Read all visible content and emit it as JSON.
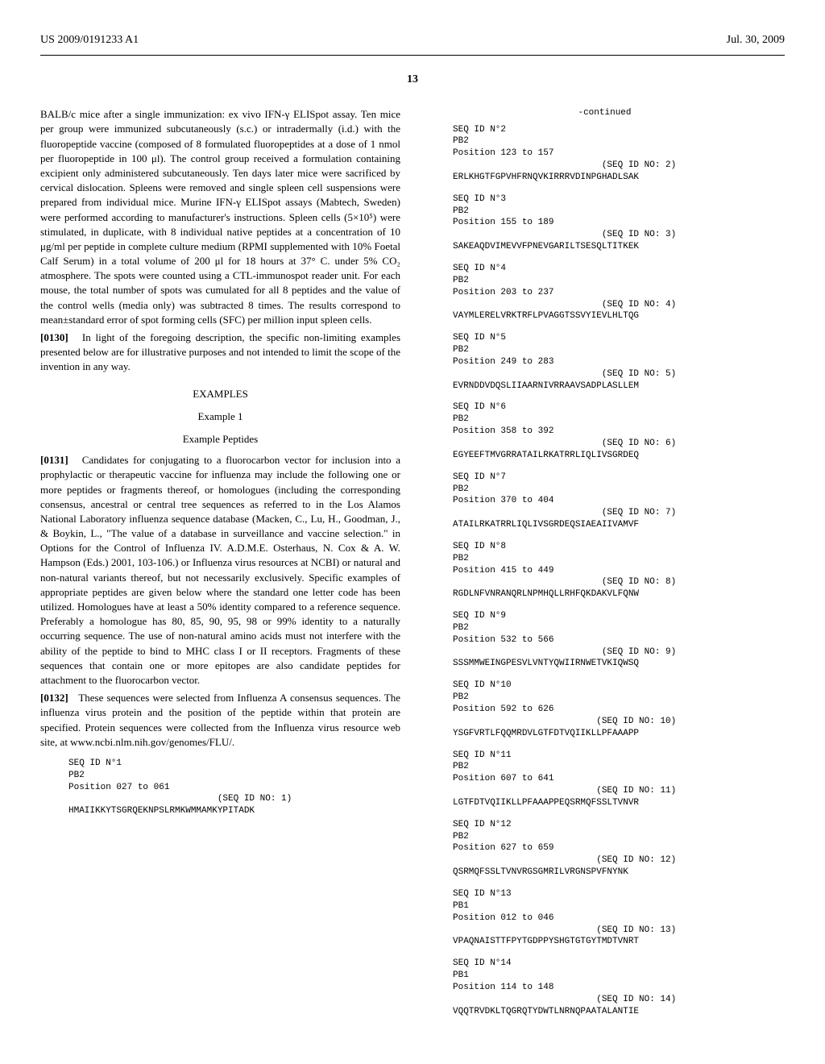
{
  "header": {
    "left": "US 2009/0191233 A1",
    "right": "Jul. 30, 2009"
  },
  "pageNum": "13",
  "leftCol": {
    "p1": "BALB/c mice after a single immunization: ex vivo IFN-γ ELISpot assay. Ten mice per group were immunized subcutaneously (s.c.) or intradermally (i.d.) with the fluoropeptide vaccine (composed of 8 formulated fluoropeptides at a dose of 1 nmol per fluoropeptide in 100 μl). The control group received a formulation containing excipient only administered subcutaneously. Ten days later mice were sacrificed by cervical dislocation. Spleens were removed and single spleen cell suspensions were prepared from individual mice. Murine IFN-γ ELISpot assays (Mabtech, Sweden) were performed according to manufacturer's instructions. Spleen cells (5×10⁵) were stimulated, in duplicate, with 8 individual native peptides at a concentration of 10 μg/ml per peptide in complete culture medium (RPMI supplemented with 10% Foetal Calf Serum) in a total volume of 200 μl for 18 hours at 37° C. under 5% CO₂ atmosphere. The spots were counted using a CTL-immunospot reader unit. For each mouse, the total number of spots was cumulated for all 8 peptides and the value of the control wells (media only) was subtracted 8 times. The results correspond to mean±standard error of spot forming cells (SFC) per million input spleen cells.",
    "p2num": "[0130]",
    "p2": "In light of the foregoing description, the specific non-limiting examples presented below are for illustrative purposes and not intended to limit the scope of the invention in any way.",
    "examplesHead": "EXAMPLES",
    "example1": "Example 1",
    "examplePeptides": "Example Peptides",
    "p3num": "[0131]",
    "p3": "Candidates for conjugating to a fluorocarbon vector for inclusion into a prophylactic or therapeutic vaccine for influenza may include the following one or more peptides or fragments thereof, or homologues (including the corresponding consensus, ancestral or central tree sequences as referred to in the Los Alamos National Laboratory influenza sequence database (Macken, C., Lu, H., Goodman, J., & Boykin, L., \"The value of a database in surveillance and vaccine selection.\" in Options for the Control of Influenza IV. A.D.M.E. Osterhaus, N. Cox & A. W. Hampson (Eds.) 2001, 103-106.) or Influenza virus resources at NCBI) or natural and non-natural variants thereof, but not necessarily exclusively. Specific examples of appropriate peptides are given below where the standard one letter code has been utilized. Homologues have at least a 50% identity compared to a reference sequence. Preferably a homologue has 80, 85, 90, 95, 98 or 99% identity to a naturally occurring sequence. The use of non-natural amino acids must not interfere with the ability of the peptide to bind to MHC class I or II receptors. Fragments of these sequences that contain one or more epitopes are also candidate peptides for attachment to the fluorocarbon vector.",
    "p4num": "[0132]",
    "p4": "These sequences were selected from Influenza A consensus sequences. The influenza virus protein and the position of the peptide within that protein are specified. Protein sequences were collected from the Influenza virus resource web site, at www.ncbi.nlm.nih.gov/genomes/FLU/.",
    "seq1": "SEQ ID N°1\nPB2\nPosition 027 to 061\n                            (SEQ ID NO: 1)\nHMAIIKKYTSGRQEKNPSLRMKWMMAMKYPITADK"
  },
  "rightCol": {
    "continued": "-continued",
    "sequences": [
      "SEQ ID N°2\nPB2\nPosition 123 to 157\n                            (SEQ ID NO: 2)\nERLKHGTFGPVHFRNQVKIRRRVDINPGHADLSAK",
      "SEQ ID N°3\nPB2\nPosition 155 to 189\n                            (SEQ ID NO: 3)\nSAKEAQDVIMEVVFPNEVGARILTSESQLTITKEK",
      "SEQ ID N°4\nPB2\nPosition 203 to 237\n                            (SEQ ID NO: 4)\nVAYMLERELVRKTRFLPVAGGTSSVYIEVLHLTQG",
      "SEQ ID N°5\nPB2\nPosition 249 to 283\n                            (SEQ ID NO: 5)\nEVRNDDVDQSLIIAARNIVRRAAVSADPLASLLEM",
      "SEQ ID N°6\nPB2\nPosition 358 to 392\n                            (SEQ ID NO: 6)\nEGYEEFTMVGRRATAILRKATRRLIQLIVSGRDEQ",
      "SEQ ID N°7\nPB2\nPosition 370 to 404\n                            (SEQ ID NO: 7)\nATAILRKATRRLIQLIVSGRDEQSIAEAIIVAMVF",
      "SEQ ID N°8\nPB2\nPosition 415 to 449\n                            (SEQ ID NO: 8)\nRGDLNFVNRANQRLNPMHQLLRHFQKDAKVLFQNW",
      "SEQ ID N°9\nPB2\nPosition 532 to 566\n                            (SEQ ID NO: 9)\nSSSMMWEINGPESVLVNTYQWIIRNWETVKIQWSQ",
      "SEQ ID N°10\nPB2\nPosition 592 to 626\n                           (SEQ ID NO: 10)\nYSGFVRTLFQQMRDVLGTFDTVQIIKLLPFAAAPP",
      "SEQ ID N°11\nPB2\nPosition 607 to 641\n                           (SEQ ID NO: 11)\nLGTFDTVQIIKLLPFAAAPPEQSRMQFSSLTVNVR",
      "SEQ ID N°12\nPB2\nPosition 627 to 659\n                           (SEQ ID NO: 12)\nQSRMQFSSLTVNVRGSGMRILVRGNSPVFNYNK",
      "SEQ ID N°13\nPB1\nPosition 012 to 046\n                           (SEQ ID NO: 13)\nVPAQNAISTTFPYTGDPPYSHGTGTGYTMDTVNRT",
      "SEQ ID N°14\nPB1\nPosition 114 to 148\n                           (SEQ ID NO: 14)\nVQQTRVDKLTQGRQTYDWTLNRNQPAATALANTIE"
    ]
  }
}
